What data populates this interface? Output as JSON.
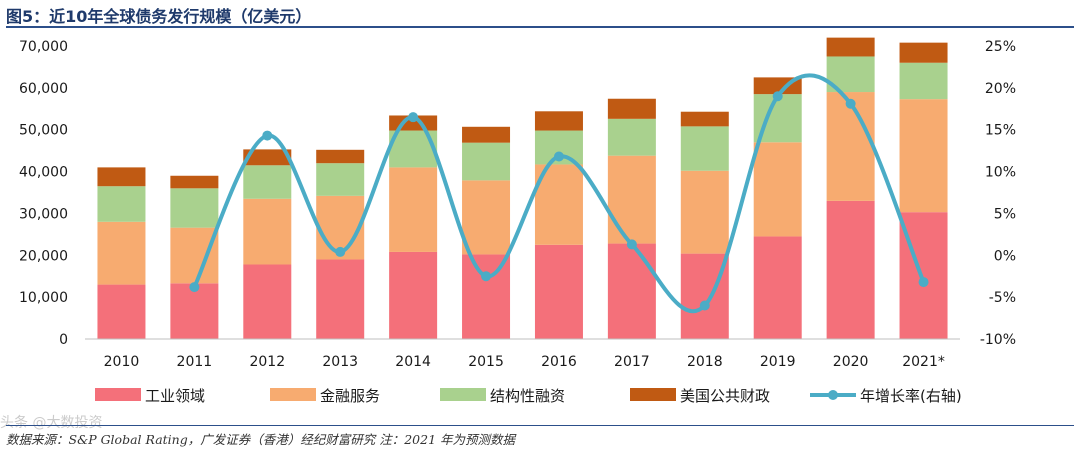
{
  "header": {
    "title": "图5：近10年全球债务发行规模（亿美元）"
  },
  "footer": {
    "source": "数据来源：S&P Global Rating，广发证券（香港）经纪财富研究  注：2021 年为预测数据"
  },
  "watermark": "头条 @大数投资",
  "colors": {
    "industrial": "#f4707a",
    "financial": "#f7ab70",
    "structured": "#a9d18e",
    "public": "#c05a13",
    "growth": "#4bacc6"
  },
  "chart_data": {
    "type": "bar",
    "stacked": true,
    "categories": [
      "2010",
      "2011",
      "2012",
      "2013",
      "2014",
      "2015",
      "2016",
      "2017",
      "2018",
      "2019",
      "2020",
      "2021*"
    ],
    "ylim": [
      0,
      70000
    ],
    "y_ticks": [
      "0",
      "10,000",
      "20,000",
      "30,000",
      "40,000",
      "50,000",
      "60,000",
      "70,000"
    ],
    "y2lim": [
      -10,
      25
    ],
    "y2_ticks": [
      "-10%",
      "-5%",
      "0%",
      "5%",
      "10%",
      "15%",
      "20%",
      "25%"
    ],
    "series": [
      {
        "name": "工业领域",
        "type": "bar",
        "values": [
          13000,
          13300,
          17800,
          19000,
          20800,
          20200,
          22500,
          22800,
          20400,
          24500,
          33000,
          30300
        ]
      },
      {
        "name": "金融服务",
        "type": "bar",
        "values": [
          15000,
          13300,
          15700,
          15200,
          20200,
          17700,
          19200,
          21000,
          19800,
          22500,
          26000,
          27000
        ]
      },
      {
        "name": "结构性融资",
        "type": "bar",
        "values": [
          8500,
          9400,
          8000,
          7800,
          8800,
          9000,
          8100,
          8800,
          10600,
          11500,
          8500,
          8700
        ]
      },
      {
        "name": "美国公共财政",
        "type": "bar",
        "values": [
          4500,
          3000,
          3800,
          3200,
          3600,
          3800,
          4600,
          4800,
          3500,
          4000,
          4500,
          4800
        ]
      },
      {
        "name": "年增长率(右轴)",
        "type": "line",
        "axis": "right",
        "values": [
          null,
          -3.8,
          14.3,
          0.4,
          16.5,
          -2.5,
          11.8,
          1.3,
          -6.0,
          19.0,
          18.1,
          -3.2
        ]
      }
    ]
  }
}
